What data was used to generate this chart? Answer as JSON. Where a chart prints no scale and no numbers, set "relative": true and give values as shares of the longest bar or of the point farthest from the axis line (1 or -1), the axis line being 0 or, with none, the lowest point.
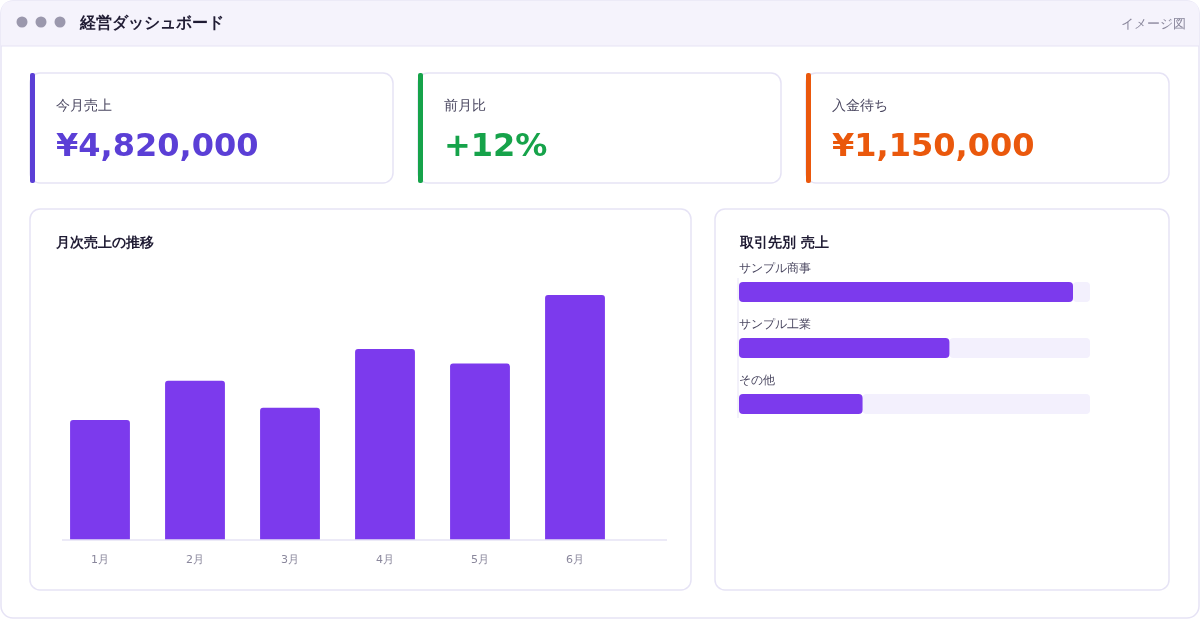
{
  "chart_data": [
    {
      "type": "other",
      "title": "経営ダッシュボード",
      "annotations": [
        "イメージ図"
      ]
    },
    {
      "type": "other",
      "title": "今月売上",
      "annotations": [
        "¥4,820,000"
      ],
      "color": "#5b3fd6"
    },
    {
      "type": "other",
      "title": "前月比",
      "annotations": [
        "+12%"
      ],
      "color": "#16a34a"
    },
    {
      "type": "other",
      "title": "入金待ち",
      "annotations": [
        "¥1,150,000"
      ],
      "color": "#ea580c"
    },
    {
      "type": "bar",
      "title": "月次売上の推移",
      "categories": [
        "1月",
        "2月",
        "3月",
        "4月",
        "5月",
        "6月"
      ],
      "values": [
        0.49,
        0.65,
        0.54,
        0.78,
        0.72,
        1
      ],
      "color": "#7c3aed",
      "relative": true
    },
    {
      "type": "bar",
      "orientation": "horizontal",
      "title": "取引先別 売上",
      "categories": [
        "サンプル商事",
        "サンプル工業",
        "その他"
      ],
      "values": [
        1,
        0.63,
        0.37
      ],
      "color": "#7c3aed",
      "relative": true
    }
  ]
}
